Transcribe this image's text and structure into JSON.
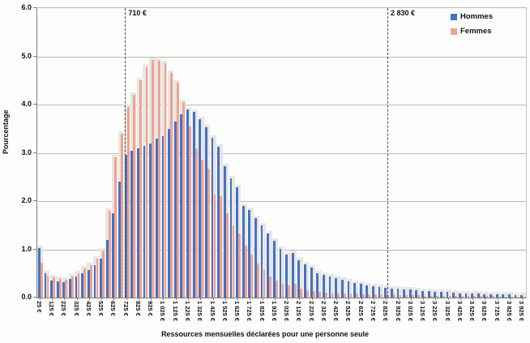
{
  "figure": {
    "y_axis_title": "Pourcentage",
    "x_axis_title": "Ressources mensuelles déclarées pour une personne seule",
    "legend": [
      {
        "label": "Hommes",
        "color": "#4472c4"
      },
      {
        "label": "Femmes",
        "color": "#f2a28c"
      }
    ]
  },
  "chart_data": {
    "type": "bar",
    "title": "",
    "xlabel": "Ressources mensuelles déclarées pour une personne seule",
    "ylabel": "Pourcentage",
    "ylim": [
      0,
      6
    ],
    "grid": true,
    "legend_position": "top-right",
    "y_ticks": [
      "0.0",
      "1.0",
      "2.0",
      "3.0",
      "4.0",
      "5.0",
      "6.0"
    ],
    "bin_width_euros": 50,
    "x": [
      25,
      75,
      125,
      175,
      225,
      275,
      325,
      375,
      425,
      475,
      525,
      575,
      625,
      675,
      725,
      775,
      825,
      875,
      925,
      975,
      1025,
      1075,
      1125,
      1175,
      1225,
      1275,
      1325,
      1375,
      1425,
      1475,
      1525,
      1575,
      1625,
      1675,
      1725,
      1775,
      1825,
      1875,
      1925,
      1975,
      2025,
      2075,
      2125,
      2175,
      2225,
      2275,
      2325,
      2375,
      2425,
      2475,
      2525,
      2575,
      2625,
      2675,
      2725,
      2775,
      2825,
      2875,
      2925,
      2975,
      3025,
      3075,
      3125,
      3175,
      3225,
      3275,
      3325,
      3375,
      3425,
      3475,
      3525,
      3575,
      3625,
      3675,
      3725,
      3775,
      3825,
      3875,
      3925
    ],
    "x_tick_labels": [
      "25 €",
      "125 €",
      "225 €",
      "325 €",
      "425 €",
      "525 €",
      "625 €",
      "725 €",
      "825 €",
      "925 €",
      "1 025 €",
      "1 125 €",
      "1 225 €",
      "1 325 €",
      "1 425 €",
      "1 525 €",
      "1 625 €",
      "1 725 €",
      "1 825 €",
      "1 925 €",
      "2 025 €",
      "2 125 €",
      "2 225 €",
      "2 325 €",
      "2 425 €",
      "2 525 €",
      "2 625 €",
      "2 725 €",
      "2 825 €",
      "2 925 €",
      "3 025 €",
      "3 125 €",
      "3 225 €",
      "3 325 €",
      "3 425 €",
      "3 525 €",
      "3 625 €",
      "3 725 €",
      "3 825 €",
      "3 925 €"
    ],
    "series": [
      {
        "name": "Hommes",
        "color": "#4472c4",
        "values": [
          1.02,
          0.5,
          0.36,
          0.34,
          0.32,
          0.38,
          0.44,
          0.5,
          0.57,
          0.68,
          0.81,
          1.2,
          1.75,
          2.4,
          2.95,
          3.05,
          3.1,
          3.15,
          3.2,
          3.3,
          3.35,
          3.5,
          3.65,
          3.8,
          3.9,
          3.85,
          3.7,
          3.53,
          3.31,
          3.13,
          2.73,
          2.47,
          2.29,
          1.9,
          1.82,
          1.64,
          1.5,
          1.33,
          1.17,
          1.01,
          0.89,
          0.93,
          0.78,
          0.69,
          0.62,
          0.5,
          0.47,
          0.43,
          0.4,
          0.37,
          0.34,
          0.31,
          0.28,
          0.26,
          0.24,
          0.22,
          0.21,
          0.19,
          0.18,
          0.17,
          0.16,
          0.15,
          0.14,
          0.13,
          0.12,
          0.11,
          0.11,
          0.1,
          0.09,
          0.09,
          0.08,
          0.08,
          0.07,
          0.07,
          0.06,
          0.06,
          0.06,
          0.05,
          0.05
        ]
      },
      {
        "name": "Femmes",
        "color": "#f2a28c",
        "values": [
          0.72,
          0.45,
          0.42,
          0.39,
          0.37,
          0.44,
          0.51,
          0.6,
          0.68,
          0.8,
          0.97,
          1.8,
          2.9,
          3.4,
          3.95,
          4.2,
          4.5,
          4.78,
          4.93,
          4.9,
          4.85,
          4.65,
          4.45,
          4.05,
          3.55,
          3.1,
          2.85,
          2.67,
          2.14,
          2.1,
          1.75,
          1.5,
          1.32,
          1.08,
          0.89,
          0.71,
          0.58,
          0.44,
          0.35,
          0.28,
          0.25,
          0.28,
          0.18,
          0.15,
          0.13,
          0.12,
          0.1,
          0.1,
          0.09,
          0.09,
          0.08,
          0.08,
          0.07,
          0.07,
          0.07,
          0.06,
          0.06,
          0.06,
          0.05,
          0.05,
          0.05,
          0.05,
          0.04,
          0.04,
          0.04,
          0.04,
          0.04,
          0.03,
          0.03,
          0.03,
          0.03,
          0.03,
          0.03,
          0.03,
          0.02,
          0.02,
          0.02,
          0.02,
          0.02
        ]
      }
    ],
    "reference_lines": [
      {
        "label": "710 €",
        "x": 710
      },
      {
        "label": "2 830 €",
        "x": 2830
      }
    ]
  }
}
